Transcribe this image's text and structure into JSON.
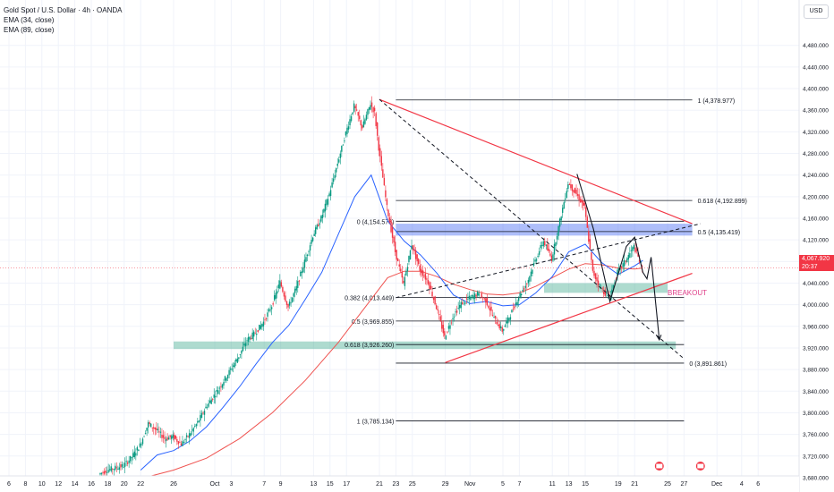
{
  "header": {
    "symbol_line": "Gold Spot / U.S. Dollar · 4h · OANDA",
    "ema_fast": "EMA (34, close)",
    "ema_slow": "EMA (89, close)",
    "currency": "USD"
  },
  "last_price": {
    "price": "4,067.920",
    "countdown": "20:37"
  },
  "colors": {
    "candle_up": "#089981",
    "candle_down": "#f23645",
    "ema_fast": "#2962ff",
    "ema_slow": "#ef5350",
    "trendline": "#f23645",
    "zone": "#4caf95",
    "resistance_zone": "#4c6ef5",
    "annotation_breakout": "#e0408a"
  },
  "chart_data": {
    "type": "candlestick",
    "symbol": "Gold Spot / U.S. Dollar",
    "interval": "4h",
    "exchange": "OANDA",
    "ylim": [
      3660,
      4540
    ],
    "y_ticks": [
      4480,
      4440,
      4400,
      4360,
      4320,
      4280,
      4240,
      4200,
      4160,
      4120,
      4080,
      4040,
      4000,
      3960,
      3920,
      3880,
      3840,
      3800,
      3760,
      3720,
      3680
    ],
    "y_tick_labels": [
      "4,480.000",
      "4,440.000",
      "4,400.000",
      "4,360.000",
      "4,320.000",
      "4,280.000",
      "4,240.000",
      "4,200.000",
      "4,160.000",
      "4,120.000",
      "4,080.000",
      "4,040.000",
      "4,000.000",
      "3,960.000",
      "3,920.000",
      "3,880.000",
      "3,840.000",
      "3,800.000",
      "3,760.000",
      "3,720.000",
      "3,680.000"
    ],
    "x_tick_labels": [
      {
        "label": "6",
        "d": 0
      },
      {
        "label": "8",
        "d": 2
      },
      {
        "label": "10",
        "d": 4
      },
      {
        "label": "12",
        "d": 6
      },
      {
        "label": "14",
        "d": 8
      },
      {
        "label": "16",
        "d": 10
      },
      {
        "label": "18",
        "d": 12
      },
      {
        "label": "20",
        "d": 14
      },
      {
        "label": "22",
        "d": 16
      },
      {
        "label": "26",
        "d": 20
      },
      {
        "label": "Oct",
        "d": 25
      },
      {
        "label": "3",
        "d": 27
      },
      {
        "label": "7",
        "d": 31
      },
      {
        "label": "9",
        "d": 33
      },
      {
        "label": "13",
        "d": 37
      },
      {
        "label": "15",
        "d": 39
      },
      {
        "label": "17",
        "d": 41
      },
      {
        "label": "21",
        "d": 45
      },
      {
        "label": "23",
        "d": 47
      },
      {
        "label": "25",
        "d": 49
      },
      {
        "label": "29",
        "d": 53
      },
      {
        "label": "Nov",
        "d": 56
      },
      {
        "label": "5",
        "d": 60
      },
      {
        "label": "7",
        "d": 62
      },
      {
        "label": "11",
        "d": 66
      },
      {
        "label": "13",
        "d": 68
      },
      {
        "label": "15",
        "d": 70
      },
      {
        "label": "19",
        "d": 74
      },
      {
        "label": "21",
        "d": 76
      },
      {
        "label": "25",
        "d": 80
      },
      {
        "label": "27",
        "d": 82
      },
      {
        "label": "Dec",
        "d": 86
      },
      {
        "label": "4",
        "d": 89
      },
      {
        "label": "6",
        "d": 91
      }
    ],
    "close_path": [
      [
        11,
        3686
      ],
      [
        12,
        3694
      ],
      [
        14,
        3702
      ],
      [
        15,
        3718
      ],
      [
        16,
        3740
      ],
      [
        17,
        3780
      ],
      [
        18,
        3768
      ],
      [
        19,
        3752
      ],
      [
        20,
        3756
      ],
      [
        21,
        3742
      ],
      [
        22,
        3760
      ],
      [
        23,
        3782
      ],
      [
        24,
        3810
      ],
      [
        25,
        3832
      ],
      [
        26,
        3855
      ],
      [
        27,
        3880
      ],
      [
        28,
        3905
      ],
      [
        29,
        3935
      ],
      [
        30,
        3948
      ],
      [
        31,
        3968
      ],
      [
        32,
        3998
      ],
      [
        33,
        4042
      ],
      [
        34,
        3995
      ],
      [
        35,
        4032
      ],
      [
        36,
        4080
      ],
      [
        37,
        4128
      ],
      [
        38,
        4160
      ],
      [
        39,
        4205
      ],
      [
        40,
        4262
      ],
      [
        41,
        4318
      ],
      [
        42,
        4368
      ],
      [
        43,
        4328
      ],
      [
        44,
        4372
      ],
      [
        44.5,
        4355
      ],
      [
        45,
        4290
      ],
      [
        46,
        4180
      ],
      [
        47,
        4098
      ],
      [
        48,
        4038
      ],
      [
        49,
        4112
      ],
      [
        50,
        4065
      ],
      [
        51,
        4042
      ],
      [
        52,
        3995
      ],
      [
        53,
        3940
      ],
      [
        54,
        3978
      ],
      [
        55,
        4002
      ],
      [
        56,
        4012
      ],
      [
        57,
        4020
      ],
      [
        58,
        4008
      ],
      [
        59,
        3975
      ],
      [
        60,
        3952
      ],
      [
        61,
        3982
      ],
      [
        62,
        4015
      ],
      [
        63,
        4040
      ],
      [
        64,
        4082
      ],
      [
        65,
        4118
      ],
      [
        66,
        4085
      ],
      [
        67,
        4155
      ],
      [
        68,
        4225
      ],
      [
        69,
        4205
      ],
      [
        70,
        4180
      ],
      [
        71,
        4060
      ],
      [
        72,
        4030
      ],
      [
        73,
        4012
      ],
      [
        74,
        4060
      ],
      [
        75,
        4082
      ],
      [
        76,
        4108
      ],
      [
        77,
        4067.92
      ]
    ],
    "ema34_path": [
      [
        16,
        3694
      ],
      [
        18,
        3722
      ],
      [
        20,
        3730
      ],
      [
        22,
        3748
      ],
      [
        24,
        3774
      ],
      [
        26,
        3810
      ],
      [
        28,
        3848
      ],
      [
        30,
        3890
      ],
      [
        32,
        3930
      ],
      [
        34,
        3962
      ],
      [
        36,
        4010
      ],
      [
        38,
        4060
      ],
      [
        40,
        4130
      ],
      [
        42,
        4200
      ],
      [
        44,
        4240
      ],
      [
        46,
        4155
      ],
      [
        48,
        4118
      ],
      [
        50,
        4092
      ],
      [
        52,
        4058
      ],
      [
        54,
        4018
      ],
      [
        56,
        4002
      ],
      [
        58,
        4006
      ],
      [
        60,
        3998
      ],
      [
        62,
        4000
      ],
      [
        64,
        4022
      ],
      [
        66,
        4052
      ],
      [
        68,
        4098
      ],
      [
        70,
        4112
      ],
      [
        72,
        4078
      ],
      [
        74,
        4056
      ],
      [
        76,
        4072
      ],
      [
        77,
        4082
      ]
    ],
    "ema89_path": [
      [
        16,
        3678
      ],
      [
        20,
        3694
      ],
      [
        24,
        3716
      ],
      [
        28,
        3752
      ],
      [
        32,
        3800
      ],
      [
        36,
        3860
      ],
      [
        40,
        3930
      ],
      [
        44,
        4010
      ],
      [
        46,
        4050
      ],
      [
        48,
        4062
      ],
      [
        50,
        4062
      ],
      [
        52,
        4052
      ],
      [
        54,
        4038
      ],
      [
        56,
        4028
      ],
      [
        58,
        4020
      ],
      [
        60,
        4018
      ],
      [
        62,
        4022
      ],
      [
        64,
        4034
      ],
      [
        66,
        4050
      ],
      [
        68,
        4066
      ],
      [
        70,
        4076
      ],
      [
        72,
        4074
      ],
      [
        74,
        4068
      ],
      [
        76,
        4066
      ],
      [
        77,
        4068
      ]
    ],
    "fib_upper": [
      {
        "label": "1 (4,378.977)",
        "level": 4378.977
      },
      {
        "label": "0.618 (4,192.899)",
        "level": 4192.899
      },
      {
        "label": "0.5 (4,135.419)",
        "level": 4135.419
      }
    ],
    "fib_lower": [
      {
        "label": "0 (4,154.575)",
        "level": 4154.575
      },
      {
        "label": "0.382 (4,013.449)",
        "level": 4013.449
      },
      {
        "label": "0.5 (3,969.855)",
        "level": 3969.855
      },
      {
        "label": "0.618 (3,926.260)",
        "level": 3926.26
      },
      {
        "label": "0 (3,891.861)",
        "level": 3891.861
      },
      {
        "label": "1 (3,785.134)",
        "level": 3785.134
      }
    ],
    "zones": [
      {
        "d0": 47,
        "d1": 83,
        "y0": 4128,
        "y1": 4150,
        "kind": "resistance"
      },
      {
        "d0": 65,
        "d1": 80,
        "y0": 4022,
        "y1": 4040,
        "kind": "support"
      },
      {
        "d0": 20,
        "d1": 81,
        "y0": 3918,
        "y1": 3932,
        "kind": "support"
      }
    ],
    "trendlines": [
      {
        "from": [
          45,
          4380
        ],
        "to": [
          83,
          4150
        ],
        "style": "solid"
      },
      {
        "from": [
          53,
          3893
        ],
        "to": [
          83,
          4058
        ],
        "style": "solid"
      },
      {
        "from": [
          45,
          4380
        ],
        "to": [
          82,
          3900
        ],
        "style": "dashed"
      },
      {
        "from": [
          47,
          4013
        ],
        "to": [
          84,
          4150
        ],
        "style": "dashed"
      }
    ],
    "projection_path": [
      [
        69,
        4242
      ],
      [
        71,
        4140
      ],
      [
        73,
        4006
      ],
      [
        75,
        4108
      ],
      [
        76,
        4125
      ],
      [
        77,
        4060
      ],
      [
        77.5,
        4048
      ],
      [
        78,
        4088
      ],
      [
        79,
        3935
      ]
    ],
    "annotations": [
      {
        "text": "BREAKOUT",
        "d": 80,
        "y": 4018
      }
    ]
  }
}
